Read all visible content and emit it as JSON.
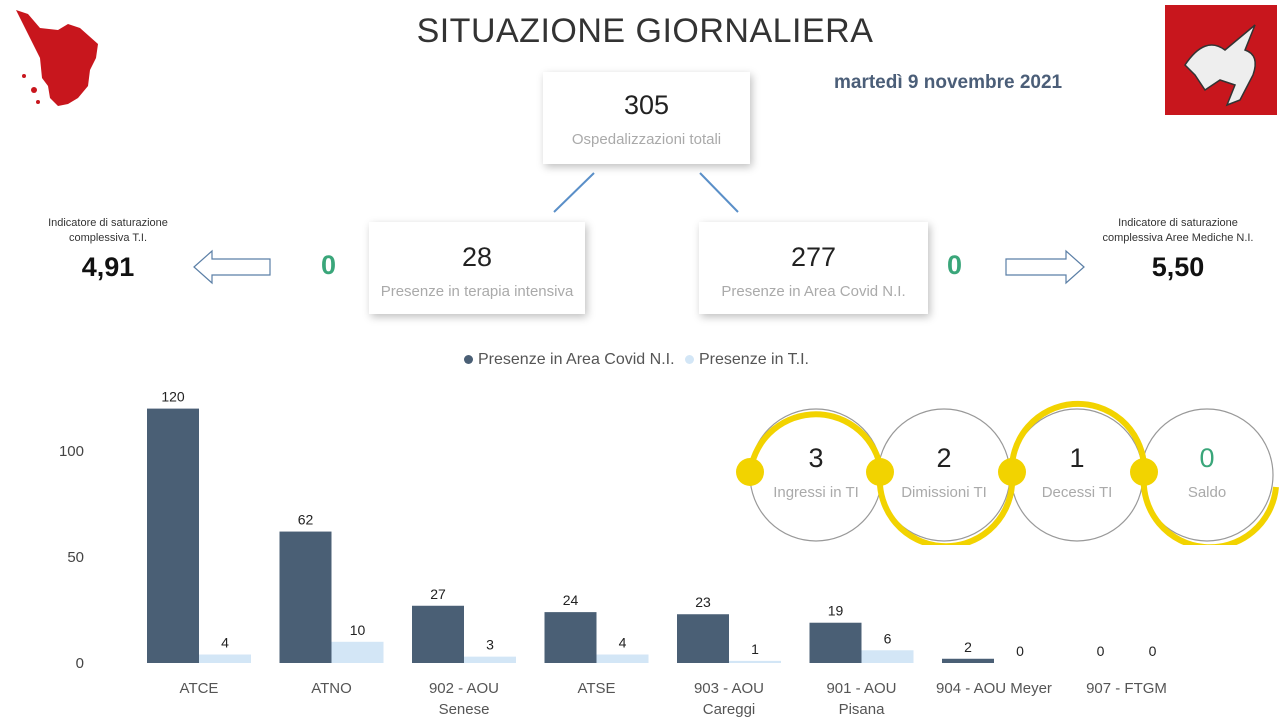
{
  "header": {
    "title": "SITUAZIONE GIORNALIERA",
    "date": "martedì 9 novembre 2021",
    "logo_left": "tuscany-map",
    "logo_right": "regione-toscana-pegasus"
  },
  "totals": {
    "value": "305",
    "label": "Ospedalizzazioni totali"
  },
  "ti": {
    "value": "28",
    "label": "Presenze in terapia intensiva",
    "delta": "0"
  },
  "covid": {
    "value": "277",
    "label": "Presenze in Area Covid N.I.",
    "delta": "0"
  },
  "sat_ti": {
    "label1": "Indicatore di saturazione",
    "label2": "complessiva T.I.",
    "value": "4,91"
  },
  "sat_am": {
    "label1": "Indicatore di saturazione",
    "label2": "complessiva Aree Mediche N.I.",
    "value": "5,50"
  },
  "flow": [
    {
      "value": "3",
      "label": "Ingressi in TI"
    },
    {
      "value": "2",
      "label": "Dimissioni TI"
    },
    {
      "value": "1",
      "label": "Decessi TI"
    },
    {
      "value": "0",
      "label": "Saldo"
    }
  ],
  "colors": {
    "dark": "#4a5f75",
    "light": "#d3e6f6",
    "green": "#3aa67a",
    "yellow": "#f2d300",
    "red": "#c8161d"
  },
  "chart_data": {
    "type": "bar",
    "categories": [
      [
        "ATCE"
      ],
      [
        "ATNO"
      ],
      [
        "902 - AOU",
        "Senese"
      ],
      [
        "ATSE"
      ],
      [
        "903 - AOU",
        "Careggi"
      ],
      [
        "901 - AOU",
        "Pisana"
      ],
      [
        "904 - AOU Meyer"
      ],
      [
        "907 - FTGM"
      ]
    ],
    "series": [
      {
        "name": "Presenze in Area Covid N.I.",
        "values": [
          120,
          62,
          27,
          24,
          23,
          19,
          2,
          0
        ]
      },
      {
        "name": "Presenze in T.I.",
        "values": [
          4,
          10,
          3,
          4,
          1,
          6,
          0,
          0
        ]
      }
    ],
    "yticks": [
      0,
      50,
      100
    ],
    "ylim": [
      0,
      125
    ],
    "legend": "top"
  }
}
